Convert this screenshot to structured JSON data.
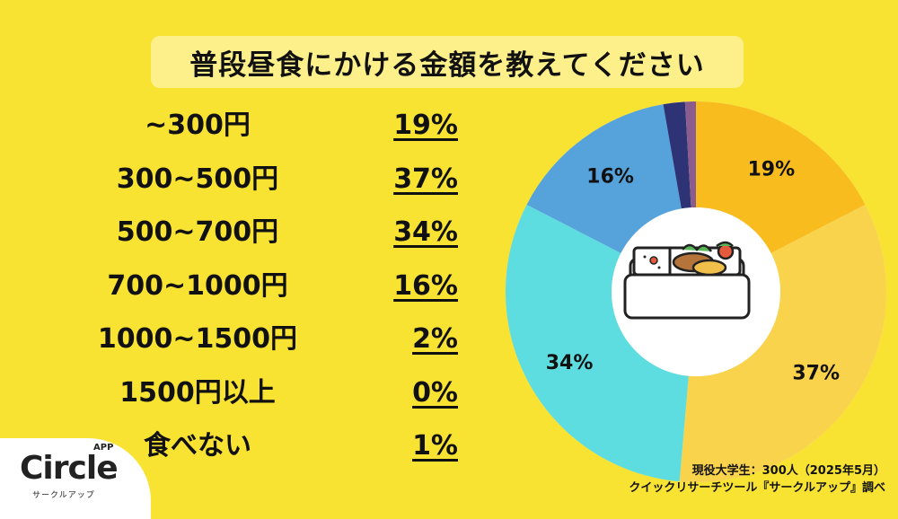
{
  "title": "普段昼食にかける金額を教えてください",
  "chart_data": {
    "type": "pie",
    "title": "普段昼食にかける金額を教えてください",
    "categories": [
      "~300円",
      "300~500円",
      "500~700円",
      "700~1000円",
      "1000~1500円",
      "1500円以上",
      "食べない"
    ],
    "values": [
      19,
      37,
      34,
      16,
      2,
      0,
      1
    ],
    "display_labels": [
      "19%",
      "37%",
      "34%",
      "16%",
      "2%",
      "0%",
      "1%"
    ],
    "slice_labels": [
      "19%",
      "37%",
      "34%",
      "16%",
      "",
      "",
      ""
    ],
    "colors": [
      "#f8bc1e",
      "#fad34c",
      "#5ddde0",
      "#56a3dc",
      "#2d3374",
      "#2d3374",
      "#8b5c8e"
    ],
    "center_icon": "bento-box-icon",
    "style": "donut"
  },
  "source": {
    "line1": "現役大学生：300人（2025年5月）",
    "line2": "クイックリサーチツール『サークルアップ』調べ"
  },
  "logo": {
    "name": "Circle",
    "superscript": "APP",
    "kana": "サークルアップ"
  }
}
